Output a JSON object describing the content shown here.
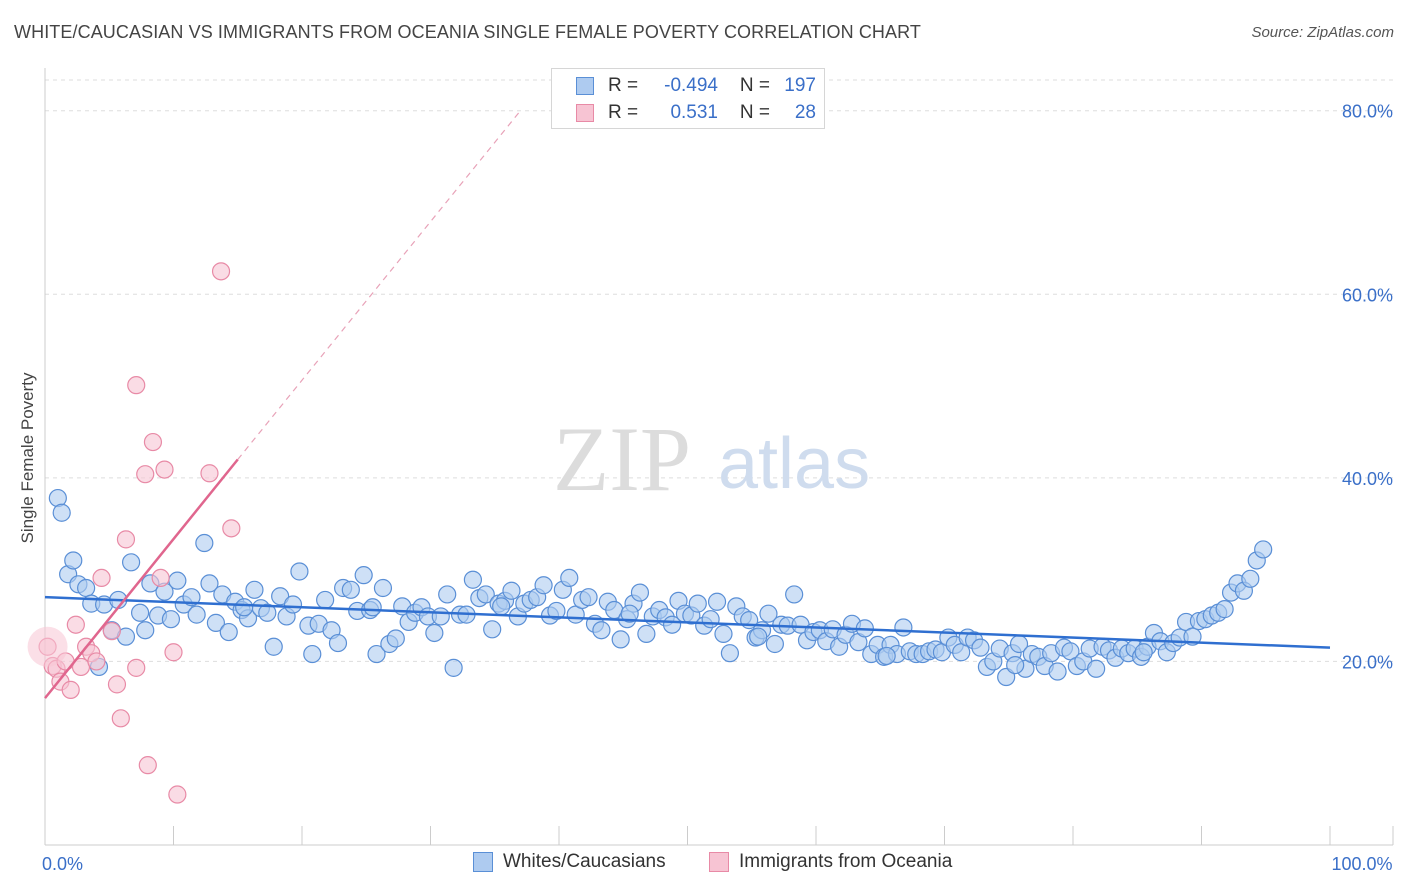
{
  "title": "WHITE/CAUCASIAN VS IMMIGRANTS FROM OCEANIA SINGLE FEMALE POVERTY CORRELATION CHART",
  "source": "Source: ZipAtlas.com",
  "watermark": {
    "zip": "ZIP",
    "atlas": "atlas"
  },
  "legend_top": [
    {
      "r_label": "R =",
      "r_value": "-0.494",
      "n_label": "N =",
      "n_value": "197",
      "fill": "#aecbf0",
      "stroke": "#5a8fd6"
    },
    {
      "r_label": "R =",
      "r_value": "0.531",
      "n_label": "N =",
      "n_value": "28",
      "fill": "#f7c4d3",
      "stroke": "#e88aa6"
    }
  ],
  "legend_bottom": [
    {
      "label": "Whites/Caucasians",
      "fill": "#aecbf0",
      "stroke": "#5a8fd6"
    },
    {
      "label": "Immigrants from Oceania",
      "fill": "#f7c4d3",
      "stroke": "#e88aa6"
    }
  ],
  "chart_data": {
    "type": "scatter",
    "title": "WHITE/CAUCASIAN VS IMMIGRANTS FROM OCEANIA SINGLE FEMALE POVERTY CORRELATION CHART",
    "xlabel": "",
    "ylabel": "Single Female Poverty",
    "xlim": [
      0,
      100
    ],
    "ylim": [
      0,
      84
    ],
    "x_tick_labels": [
      {
        "value": 0,
        "label": "0.0%"
      },
      {
        "value": 100,
        "label": "100.0%"
      }
    ],
    "x_minor_ticks": [
      0,
      10,
      20,
      30,
      40,
      50,
      60,
      70,
      80,
      90,
      100
    ],
    "y_ticks": [
      {
        "value": 20,
        "label": "20.0%"
      },
      {
        "value": 40,
        "label": "40.0%"
      },
      {
        "value": 60,
        "label": "60.0%"
      },
      {
        "value": 80,
        "label": "80.0%"
      }
    ],
    "grid": true,
    "legend_position": "top-center",
    "series": [
      {
        "name": "Whites/Caucasians",
        "color": "#5a8fd6",
        "fill": "#aecbf0",
        "points": [
          [
            1.0,
            37.8
          ],
          [
            1.3,
            36.2
          ],
          [
            1.8,
            29.5
          ],
          [
            2.2,
            31.0
          ],
          [
            2.6,
            28.4
          ],
          [
            3.2,
            28.0
          ],
          [
            3.6,
            26.3
          ],
          [
            4.2,
            19.4
          ],
          [
            4.6,
            26.2
          ],
          [
            5.2,
            23.4
          ],
          [
            5.7,
            26.7
          ],
          [
            6.3,
            22.7
          ],
          [
            6.7,
            30.8
          ],
          [
            7.4,
            25.3
          ],
          [
            7.8,
            23.4
          ],
          [
            8.2,
            28.5
          ],
          [
            8.8,
            25.0
          ],
          [
            9.3,
            27.6
          ],
          [
            9.8,
            24.6
          ],
          [
            10.3,
            28.8
          ],
          [
            10.8,
            26.2
          ],
          [
            11.4,
            27.0
          ],
          [
            11.8,
            25.1
          ],
          [
            12.4,
            32.9
          ],
          [
            12.8,
            28.5
          ],
          [
            13.3,
            24.2
          ],
          [
            13.8,
            27.3
          ],
          [
            14.3,
            23.2
          ],
          [
            14.8,
            26.5
          ],
          [
            15.3,
            25.6
          ],
          [
            15.8,
            24.7
          ],
          [
            16.3,
            27.8
          ],
          [
            16.8,
            25.8
          ],
          [
            17.3,
            25.3
          ],
          [
            17.8,
            21.6
          ],
          [
            18.3,
            27.1
          ],
          [
            18.8,
            24.9
          ],
          [
            19.3,
            26.2
          ],
          [
            19.8,
            29.8
          ],
          [
            20.5,
            23.9
          ],
          [
            20.8,
            20.8
          ],
          [
            21.3,
            24.1
          ],
          [
            21.8,
            26.7
          ],
          [
            22.3,
            23.4
          ],
          [
            22.8,
            22.0
          ],
          [
            23.2,
            28.0
          ],
          [
            23.8,
            27.8
          ],
          [
            24.3,
            25.5
          ],
          [
            24.8,
            29.4
          ],
          [
            25.3,
            25.6
          ],
          [
            25.8,
            20.8
          ],
          [
            26.3,
            28.0
          ],
          [
            26.8,
            21.9
          ],
          [
            27.3,
            22.5
          ],
          [
            27.8,
            26.0
          ],
          [
            28.3,
            24.3
          ],
          [
            28.8,
            25.3
          ],
          [
            29.3,
            25.9
          ],
          [
            29.8,
            24.9
          ],
          [
            30.3,
            23.1
          ],
          [
            30.8,
            24.9
          ],
          [
            31.3,
            27.3
          ],
          [
            31.8,
            19.3
          ],
          [
            32.3,
            25.1
          ],
          [
            32.8,
            25.1
          ],
          [
            33.3,
            28.9
          ],
          [
            33.8,
            26.9
          ],
          [
            34.3,
            27.3
          ],
          [
            34.8,
            23.5
          ],
          [
            35.3,
            26.3
          ],
          [
            35.8,
            26.6
          ],
          [
            36.3,
            27.7
          ],
          [
            36.8,
            24.9
          ],
          [
            37.3,
            26.3
          ],
          [
            37.8,
            26.7
          ],
          [
            38.3,
            27.0
          ],
          [
            38.8,
            28.3
          ],
          [
            39.3,
            25.0
          ],
          [
            39.8,
            25.5
          ],
          [
            40.3,
            27.8
          ],
          [
            40.8,
            29.1
          ],
          [
            41.3,
            25.1
          ],
          [
            41.8,
            26.7
          ],
          [
            42.3,
            27.0
          ],
          [
            42.8,
            24.1
          ],
          [
            43.3,
            23.4
          ],
          [
            43.8,
            26.5
          ],
          [
            44.3,
            25.6
          ],
          [
            44.8,
            22.4
          ],
          [
            45.3,
            24.6
          ],
          [
            45.8,
            26.3
          ],
          [
            46.3,
            27.5
          ],
          [
            46.8,
            23.0
          ],
          [
            47.3,
            24.9
          ],
          [
            47.8,
            25.6
          ],
          [
            48.3,
            24.8
          ],
          [
            48.8,
            24.0
          ],
          [
            49.3,
            26.6
          ],
          [
            49.8,
            25.2
          ],
          [
            50.3,
            25.0
          ],
          [
            50.8,
            26.3
          ],
          [
            51.3,
            23.9
          ],
          [
            51.8,
            24.6
          ],
          [
            52.3,
            26.5
          ],
          [
            52.8,
            23.0
          ],
          [
            53.3,
            20.9
          ],
          [
            53.8,
            26.0
          ],
          [
            54.3,
            24.9
          ],
          [
            54.8,
            24.5
          ],
          [
            55.3,
            22.6
          ],
          [
            55.8,
            23.4
          ],
          [
            56.3,
            25.2
          ],
          [
            56.8,
            21.9
          ],
          [
            57.3,
            24.0
          ],
          [
            57.8,
            23.9
          ],
          [
            58.3,
            27.3
          ],
          [
            58.8,
            24.0
          ],
          [
            59.3,
            22.3
          ],
          [
            59.8,
            23.2
          ],
          [
            60.3,
            23.4
          ],
          [
            60.8,
            22.2
          ],
          [
            61.3,
            23.5
          ],
          [
            61.8,
            21.6
          ],
          [
            62.3,
            22.9
          ],
          [
            62.8,
            24.1
          ],
          [
            63.3,
            22.1
          ],
          [
            63.8,
            23.6
          ],
          [
            64.3,
            20.8
          ],
          [
            64.8,
            21.8
          ],
          [
            65.3,
            20.5
          ],
          [
            65.8,
            21.8
          ],
          [
            66.3,
            20.8
          ],
          [
            66.8,
            23.7
          ],
          [
            67.3,
            21.1
          ],
          [
            67.8,
            20.8
          ],
          [
            68.3,
            20.8
          ],
          [
            68.8,
            21.1
          ],
          [
            69.3,
            21.3
          ],
          [
            69.8,
            21.0
          ],
          [
            70.3,
            22.6
          ],
          [
            70.8,
            21.8
          ],
          [
            71.3,
            21.0
          ],
          [
            71.8,
            22.6
          ],
          [
            72.3,
            22.3
          ],
          [
            72.8,
            21.5
          ],
          [
            73.3,
            19.4
          ],
          [
            73.8,
            20.0
          ],
          [
            74.3,
            21.4
          ],
          [
            74.8,
            18.3
          ],
          [
            75.3,
            20.9
          ],
          [
            75.8,
            21.9
          ],
          [
            76.3,
            19.2
          ],
          [
            76.8,
            20.8
          ],
          [
            77.3,
            20.5
          ],
          [
            77.8,
            19.5
          ],
          [
            78.3,
            20.9
          ],
          [
            78.8,
            18.9
          ],
          [
            79.3,
            21.5
          ],
          [
            79.8,
            21.1
          ],
          [
            80.3,
            19.5
          ],
          [
            80.8,
            20.0
          ],
          [
            81.3,
            21.4
          ],
          [
            81.8,
            19.2
          ],
          [
            82.3,
            21.6
          ],
          [
            82.8,
            21.2
          ],
          [
            83.3,
            20.4
          ],
          [
            83.8,
            21.4
          ],
          [
            84.3,
            20.9
          ],
          [
            84.8,
            21.4
          ],
          [
            85.3,
            20.5
          ],
          [
            85.8,
            21.6
          ],
          [
            86.3,
            23.1
          ],
          [
            86.8,
            22.2
          ],
          [
            87.3,
            21.0
          ],
          [
            87.8,
            22.0
          ],
          [
            88.3,
            22.6
          ],
          [
            88.8,
            24.3
          ],
          [
            89.3,
            22.7
          ],
          [
            89.8,
            24.4
          ],
          [
            90.3,
            24.6
          ],
          [
            90.8,
            25.0
          ],
          [
            91.3,
            25.3
          ],
          [
            91.8,
            25.7
          ],
          [
            92.3,
            27.5
          ],
          [
            92.8,
            28.5
          ],
          [
            93.3,
            27.7
          ],
          [
            93.8,
            29.0
          ],
          [
            94.3,
            31.0
          ],
          [
            94.8,
            32.2
          ],
          [
            45.5,
            25.2
          ],
          [
            55.5,
            22.7
          ],
          [
            65.5,
            20.6
          ],
          [
            75.5,
            19.6
          ],
          [
            85.5,
            21.0
          ],
          [
            35.5,
            26.0
          ],
          [
            25.5,
            25.9
          ],
          [
            15.5,
            25.9
          ]
        ],
        "trend": {
          "x": [
            0,
            100
          ],
          "y": [
            27.0,
            21.5
          ]
        }
      },
      {
        "name": "Immigrants from Oceania",
        "color": "#e88aa6",
        "fill": "#f7c4d3",
        "points": [
          [
            0.2,
            21.6
          ],
          [
            0.6,
            19.5
          ],
          [
            0.9,
            19.2
          ],
          [
            1.2,
            17.8
          ],
          [
            1.6,
            20.0
          ],
          [
            2.0,
            16.9
          ],
          [
            2.4,
            24.0
          ],
          [
            2.8,
            19.4
          ],
          [
            3.2,
            21.6
          ],
          [
            3.6,
            20.9
          ],
          [
            4.0,
            20.0
          ],
          [
            4.4,
            29.1
          ],
          [
            5.2,
            23.3
          ],
          [
            5.6,
            17.5
          ],
          [
            5.9,
            13.8
          ],
          [
            6.3,
            33.3
          ],
          [
            7.1,
            50.1
          ],
          [
            7.1,
            19.3
          ],
          [
            7.8,
            40.4
          ],
          [
            8.0,
            8.7
          ],
          [
            8.4,
            43.9
          ],
          [
            9.0,
            29.1
          ],
          [
            9.3,
            40.9
          ],
          [
            10.0,
            21.0
          ],
          [
            10.3,
            5.5
          ],
          [
            12.8,
            40.5
          ],
          [
            13.7,
            62.5
          ],
          [
            14.5,
            34.5
          ]
        ],
        "trend": {
          "x": [
            0,
            15
          ],
          "y": [
            16.0,
            42.0
          ]
        },
        "trend_extended": {
          "x": [
            15,
            37
          ],
          "y": [
            42.0,
            80.0
          ]
        }
      }
    ]
  }
}
